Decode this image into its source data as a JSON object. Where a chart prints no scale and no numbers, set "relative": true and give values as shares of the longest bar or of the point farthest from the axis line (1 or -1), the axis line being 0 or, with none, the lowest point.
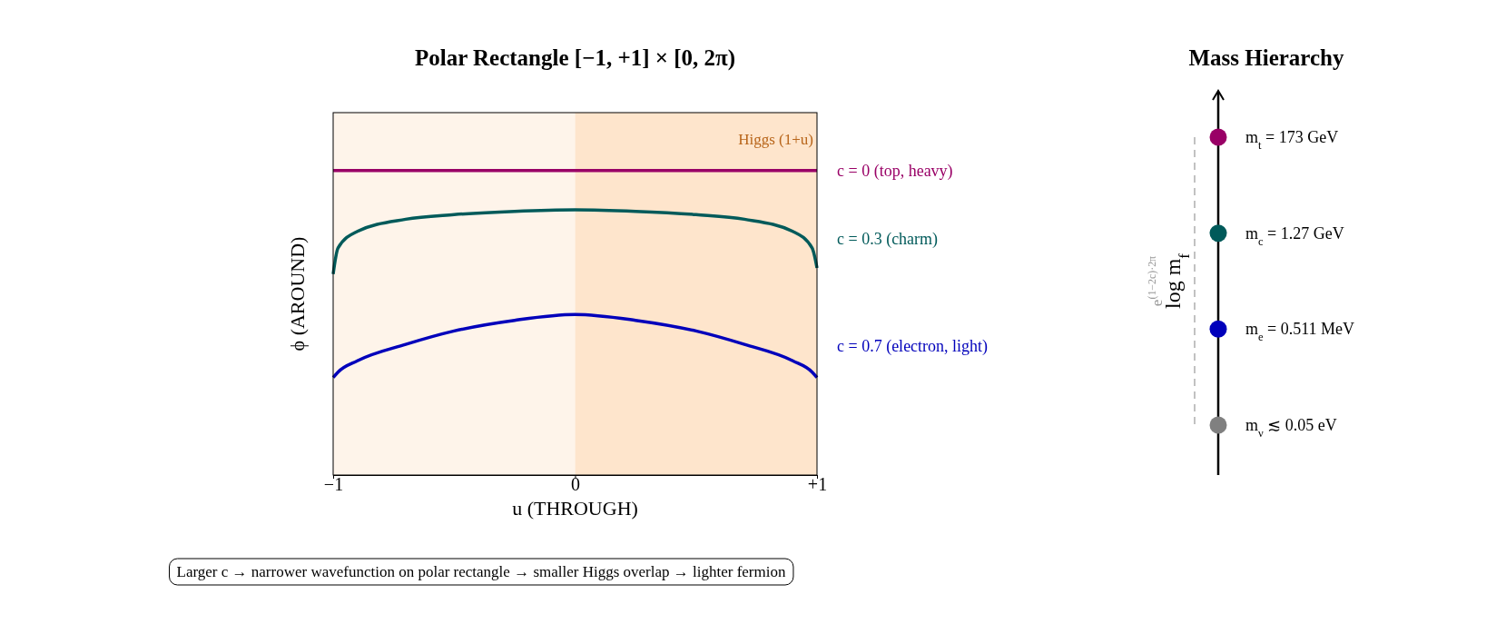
{
  "chart_data": [
    {
      "type": "line",
      "title": "Polar Rectangle [−1, +1] × [0, 2π)",
      "xlabel": "u (THROUGH)",
      "ylabel": "ϕ (AROUND)",
      "relative": true,
      "x": [
        -1,
        -0.98,
        -0.9,
        -0.7,
        -0.5,
        -0.25,
        0,
        0.25,
        0.5,
        0.7,
        0.9,
        0.98,
        1
      ],
      "xlim": [
        -1,
        1
      ],
      "xticks": [
        {
          "value": -1,
          "label": "−1"
        },
        0,
        {
          "value": 1,
          "label": "+1"
        }
      ],
      "series": [
        {
          "name": "c = 0 (top, heavy)",
          "color": "#990066",
          "values": [
            1,
            1,
            1,
            1,
            1,
            1,
            1,
            1,
            1,
            1,
            1,
            1,
            1
          ]
        },
        {
          "name": "c = 0.3 (charm)",
          "color": "#005a5a",
          "values": [
            0.66,
            0.745,
            0.8,
            0.84,
            0.855,
            0.866,
            0.871,
            0.866,
            0.855,
            0.84,
            0.8,
            0.745,
            0.68
          ]
        },
        {
          "name": "c = 0.7 (electron, light)",
          "color": "#0000bb",
          "values": [
            0.32,
            0.338,
            0.375,
            0.429,
            0.473,
            0.508,
            0.527,
            0.508,
            0.473,
            0.429,
            0.375,
            0.338,
            0.32
          ]
        }
      ],
      "bands": [
        {
          "axis": "x",
          "from": -1,
          "to": 0,
          "color": "#fef4ea"
        },
        {
          "axis": "x",
          "from": 0,
          "to": 1,
          "color": "#fee5cc",
          "label": "Higgs (1+u)"
        }
      ],
      "annotations": [
        "Larger c → narrower wavefunction on polar rectangle → smaller Higgs overlap → lighter fermion"
      ]
    },
    {
      "type": "other",
      "title": "Mass Hierarchy",
      "ylabel": "log m$_{f}$",
      "categories": [
        "m$_{t}$ = 173 GeV",
        "m$_{c}$ = 1.27 GeV",
        "m$_{e}$ = 0.511 MeV",
        "m$_{ν}$ ≲ 0.05 eV"
      ],
      "colors": [
        "#990066",
        "#005a5a",
        "#0000bb",
        "#808080"
      ],
      "annotations": [
        "e$^{(1−2c)·2π}$"
      ]
    }
  ]
}
